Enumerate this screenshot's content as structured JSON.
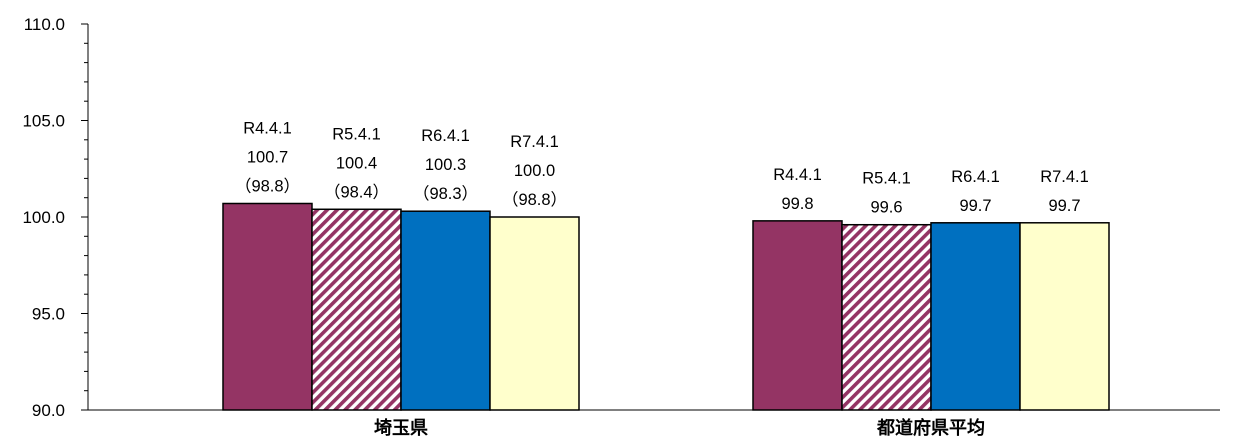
{
  "chart_data": {
    "type": "bar",
    "categories": [
      "埼玉県",
      "都道府県平均"
    ],
    "series": [
      {
        "name": "R4.4.1",
        "color": "#943464",
        "pattern": "solid",
        "values": [
          100.7,
          99.8
        ],
        "labels": [
          [
            "R4.4.1",
            "100.7",
            "（98.8）"
          ],
          [
            "R4.4.1",
            "99.8"
          ]
        ]
      },
      {
        "name": "R5.4.1",
        "color": "#943464",
        "pattern": "diagonal-hatch",
        "values": [
          100.4,
          99.6
        ],
        "labels": [
          [
            "R5.4.1",
            "100.4",
            "（98.4）"
          ],
          [
            "R5.4.1",
            "99.6"
          ]
        ]
      },
      {
        "name": "R6.4.1",
        "color": "#0070c0",
        "pattern": "solid",
        "values": [
          100.3,
          99.7
        ],
        "labels": [
          [
            "R6.4.1",
            "100.3",
            "（98.3）"
          ],
          [
            "R6.4.1",
            "99.7"
          ]
        ]
      },
      {
        "name": "R7.4.1",
        "color": "#ffffcc",
        "pattern": "solid",
        "values": [
          100.0,
          99.7
        ],
        "labels": [
          [
            "R7.4.1",
            "100.0",
            "（98.8）"
          ],
          [
            "R7.4.1",
            "99.7"
          ]
        ]
      }
    ],
    "yticks": [
      "90.0",
      "95.0",
      "100.0",
      "105.0",
      "110.0"
    ],
    "ylim": [
      90,
      110
    ],
    "ymajor": 5,
    "yminor": 1,
    "grid": false,
    "legend": "none",
    "title": "",
    "xlabel": "",
    "ylabel": ""
  }
}
